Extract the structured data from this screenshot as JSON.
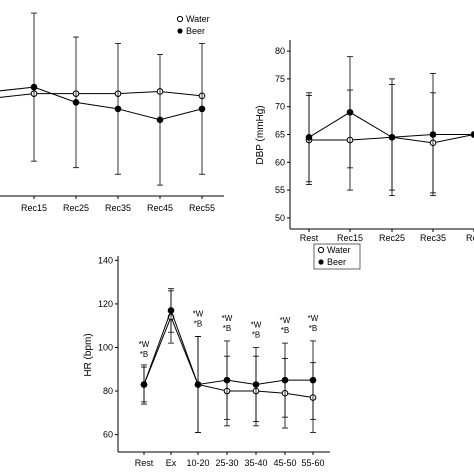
{
  "chart_data": [
    {
      "id": "sbp-cropped",
      "type": "line",
      "title": "",
      "ylabel": "",
      "xlabel": "",
      "categories": [
        "",
        "Rec15",
        "Rec25",
        "Rec35",
        "Rec45",
        "Rec55"
      ],
      "ylim": [
        40,
        130
      ],
      "legend": {
        "placement": "top-center",
        "entries": [
          "Water",
          "Beer"
        ]
      },
      "series": [
        {
          "name": "Water",
          "marker": "open-circle",
          "values": [
            85,
            87,
            87,
            87,
            88,
            86
          ],
          "errors": [
            0,
            0,
            0,
            0,
            0,
            0
          ]
        },
        {
          "name": "Beer",
          "marker": "filled-circle",
          "values": [
            88,
            90,
            83,
            80,
            75,
            80
          ],
          "errors": [
            0,
            34,
            30,
            30,
            30,
            30
          ]
        }
      ]
    },
    {
      "id": "dbp",
      "type": "line",
      "title": "",
      "ylabel": "DBP (mmHg)",
      "xlabel": "",
      "categories": [
        "Rest",
        "Rec15",
        "Rec25",
        "Rec35",
        "Rec"
      ],
      "yticks": [
        50,
        55,
        60,
        65,
        70,
        75,
        80
      ],
      "ylim": [
        48,
        82
      ],
      "series": [
        {
          "name": "Water",
          "marker": "open-circle",
          "values": [
            64,
            64,
            64.5,
            63.5,
            65
          ],
          "errors": [
            8,
            9,
            9.5,
            9,
            0
          ]
        },
        {
          "name": "Beer",
          "marker": "filled-circle",
          "values": [
            64.5,
            69,
            64.5,
            65,
            65
          ],
          "errors": [
            8,
            10,
            10.5,
            11,
            0
          ]
        }
      ]
    },
    {
      "id": "hr",
      "type": "line",
      "title": "",
      "ylabel": "HR (bpm)",
      "xlabel": "",
      "categories": [
        "Rest",
        "Ex",
        "10-20",
        "25-30",
        "35-40",
        "45-50",
        "55-60"
      ],
      "yticks": [
        60,
        80,
        100,
        120,
        140
      ],
      "ylim": [
        52,
        142
      ],
      "legend": {
        "placement": "top-right",
        "entries": [
          "Water",
          "Beer"
        ]
      },
      "annotations": [
        {
          "category": "Rest",
          "lines": [
            "*W",
            "*B"
          ]
        },
        {
          "category": "10-20",
          "lines": [
            "*W",
            "*B"
          ]
        },
        {
          "category": "25-30",
          "lines": [
            "*W",
            "*B"
          ]
        },
        {
          "category": "35-40",
          "lines": [
            "*W",
            "*B"
          ]
        },
        {
          "category": "45-50",
          "lines": [
            "*W",
            "*B"
          ]
        },
        {
          "category": "55-60",
          "lines": [
            "*W",
            "*B"
          ]
        }
      ],
      "series": [
        {
          "name": "Water",
          "marker": "open-circle",
          "values": [
            83,
            114,
            83,
            80,
            80,
            79,
            77
          ],
          "errors": [
            9,
            12,
            22,
            16,
            16,
            16,
            16
          ]
        },
        {
          "name": "Beer",
          "marker": "filled-circle",
          "values": [
            83,
            117,
            83,
            85,
            83,
            85,
            85
          ],
          "errors": [
            8,
            10,
            22,
            18,
            17,
            17,
            18
          ]
        }
      ]
    }
  ]
}
